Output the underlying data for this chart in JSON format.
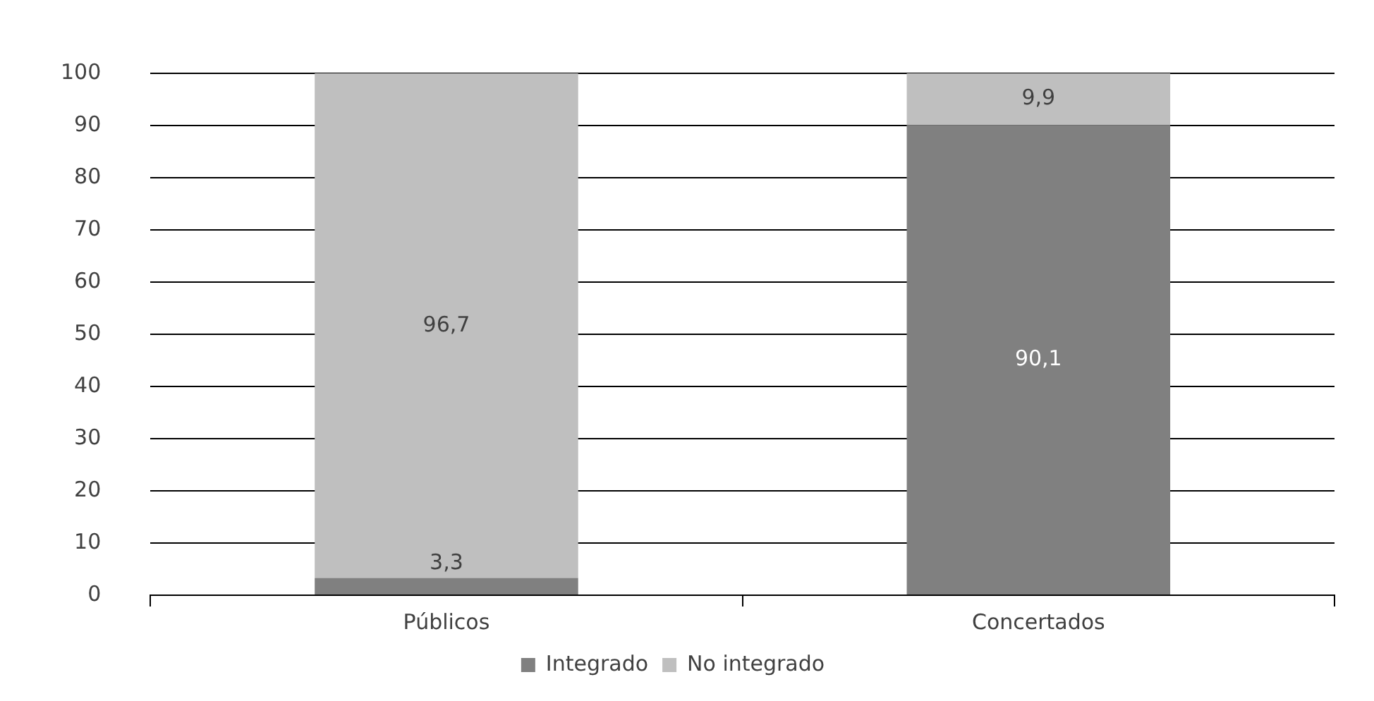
{
  "chart_data": {
    "type": "bar",
    "stacked": true,
    "categories": [
      "Públicos",
      "Concertados"
    ],
    "series": [
      {
        "name": "Integrado",
        "color": "#808080",
        "values": [
          3.3,
          90.1
        ],
        "value_labels": [
          "3,3",
          "90,1"
        ]
      },
      {
        "name": "No integrado",
        "color": "#bfbfbf",
        "values": [
          96.7,
          9.9
        ],
        "value_labels": [
          "96,7",
          "9,9"
        ]
      }
    ],
    "ylim": [
      0,
      100
    ],
    "yticks": [
      0,
      10,
      20,
      30,
      40,
      50,
      60,
      70,
      80,
      90,
      100
    ],
    "grid": "y",
    "legend": "bottom"
  }
}
